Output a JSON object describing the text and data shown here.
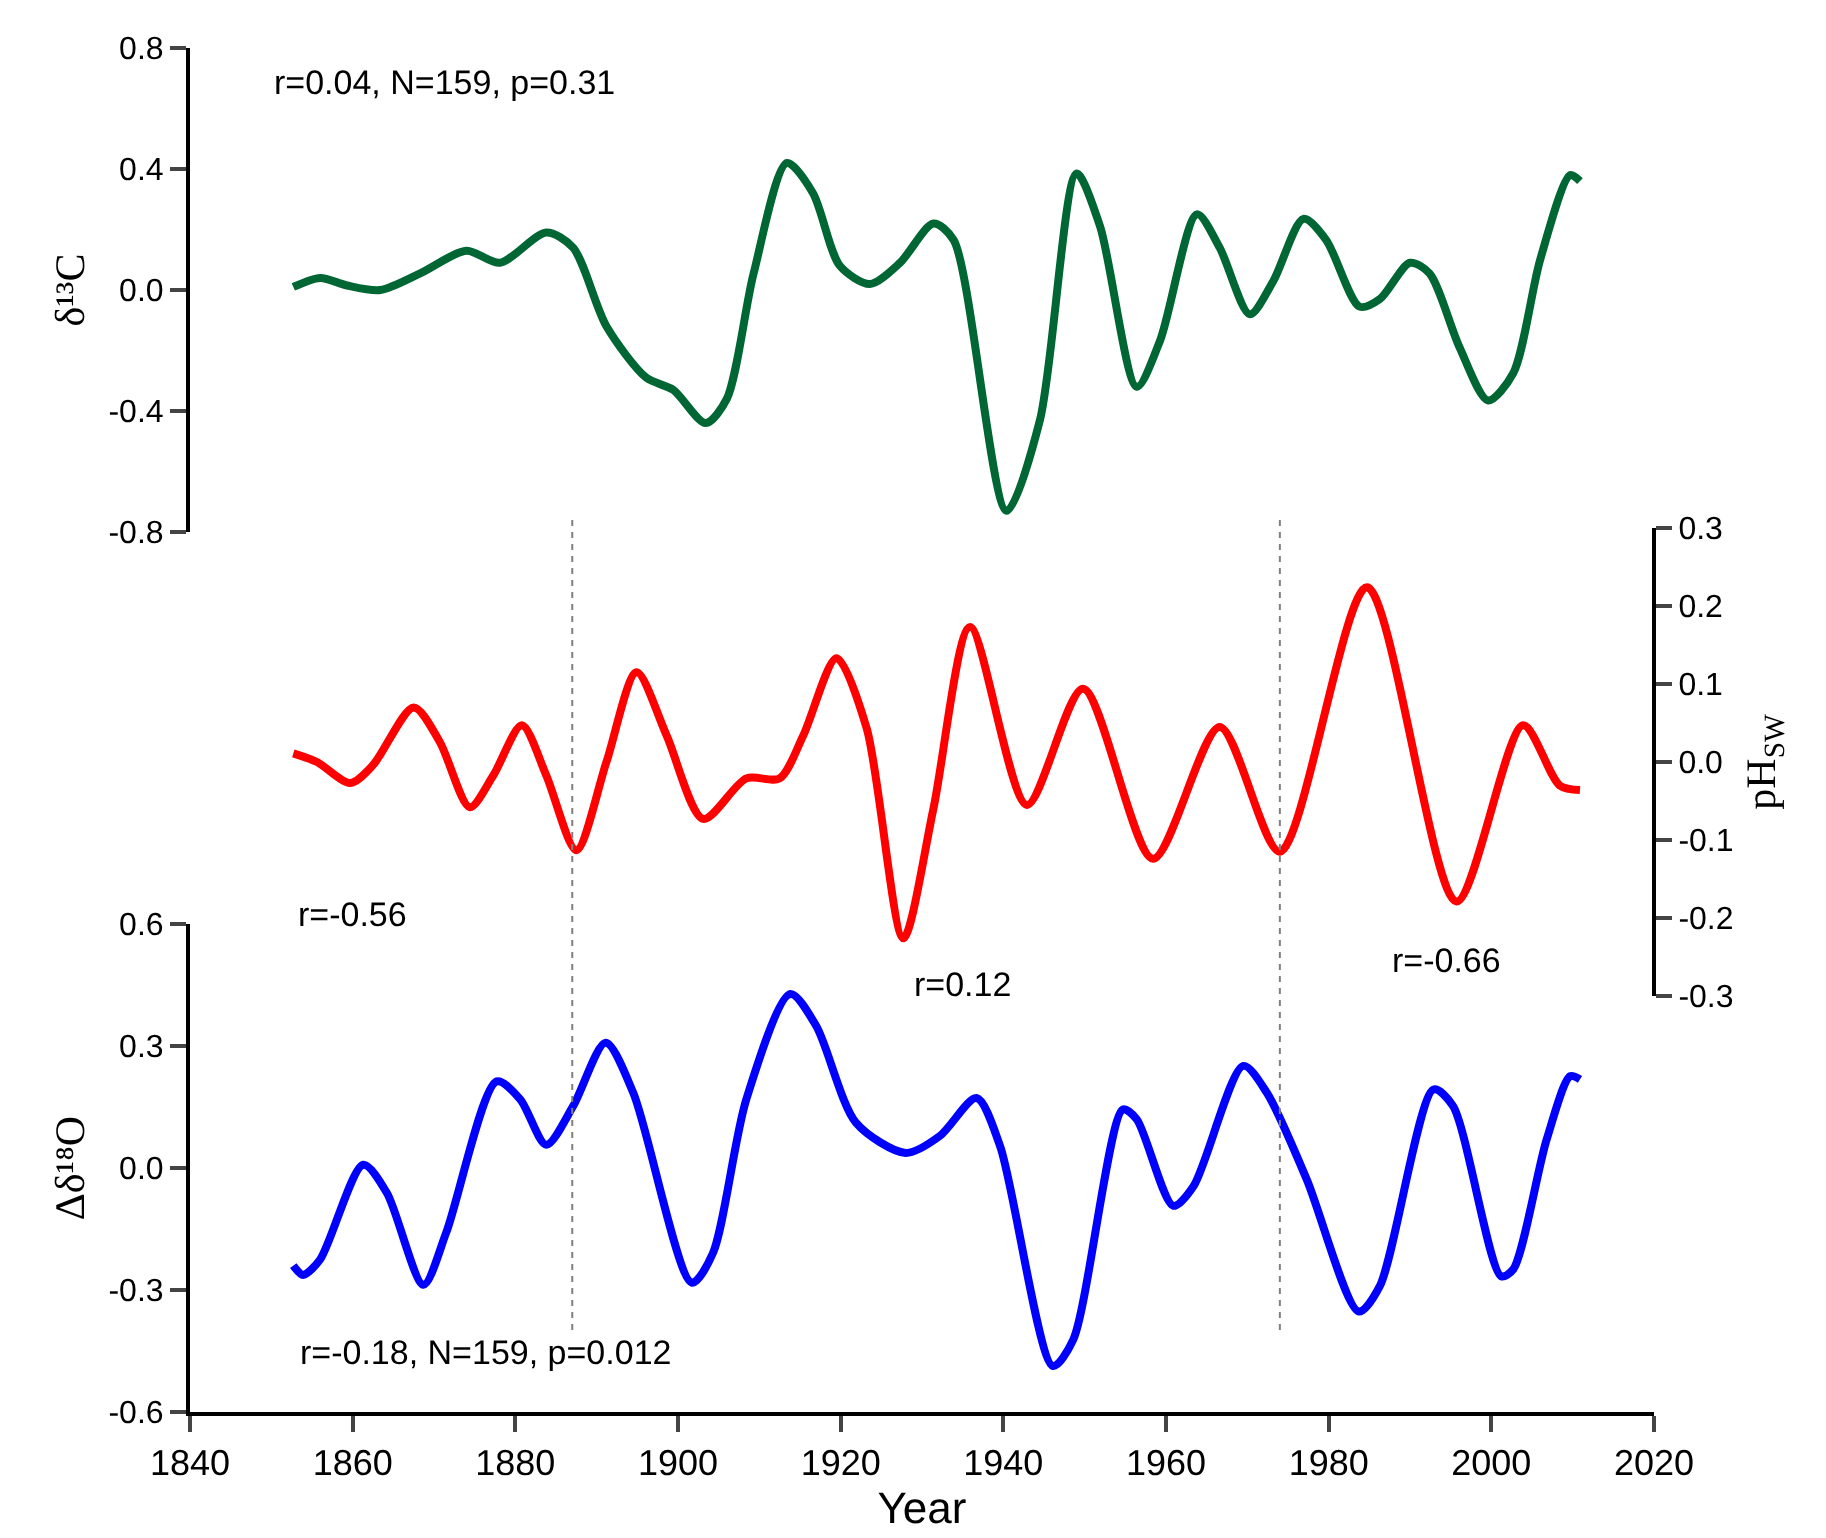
{
  "chart_data": [
    {
      "type": "line",
      "ylabel": "δ¹³C",
      "xlim": [
        1840,
        2020
      ],
      "xticks": [
        1840,
        1860,
        1880,
        1900,
        1920,
        1940,
        1960,
        1980,
        2000,
        2020
      ],
      "ylim": [
        -0.8,
        0.8
      ],
      "yticks": [
        {
          "value": -0.8,
          "label": "-0.8"
        },
        {
          "value": -0.4,
          "label": "-0.4"
        },
        {
          "value": 0,
          "label": "0.0"
        },
        {
          "value": 0.4,
          "label": "0.4"
        },
        {
          "value": 0.8,
          "label": "0.8"
        }
      ],
      "tick_labels": "y",
      "line_style": "solid",
      "annotations": [
        "r=0.04, N=159, p=0.31"
      ],
      "x": [
        1852.7,
        1856,
        1859.3,
        1863.4,
        1868.3,
        1874,
        1878.1,
        1883.8,
        1887.1,
        1891.2,
        1896.1,
        1899.4,
        1903.4,
        1906,
        1909.3,
        1913.4,
        1916.6,
        1919.9,
        1923.6,
        1927.3,
        1931.4,
        1933.9,
        1940.4,
        1944.5,
        1949,
        1951.9,
        1956.4,
        1959.3,
        1963.8,
        1966.6,
        1970.3,
        1973.2,
        1976.9,
        1979.7,
        1983.8,
        1986.3,
        1990,
        1992.4,
        1996.1,
        1999.6,
        2002.7,
        2006,
        2009.7,
        2010.9
      ],
      "series": [
        {
          "color": "#006633",
          "values": [
            0.01,
            0.04,
            0.015,
            0.0,
            0.055,
            0.13,
            0.09,
            0.19,
            0.14,
            -0.12,
            -0.29,
            -0.33,
            -0.44,
            -0.36,
            0.055,
            0.42,
            0.32,
            0.08,
            0.02,
            0.09,
            0.22,
            0.165,
            -0.73,
            -0.43,
            0.385,
            0.21,
            -0.32,
            -0.165,
            0.25,
            0.14,
            -0.08,
            0.03,
            0.235,
            0.165,
            -0.055,
            -0.03,
            0.09,
            0.055,
            -0.19,
            -0.365,
            -0.275,
            0.1,
            0.38,
            0.36
          ]
        }
      ]
    },
    {
      "type": "line",
      "ylabel": "pH$_{SW}$",
      "xlim": [
        1840,
        2020
      ],
      "xticks": [
        1840,
        1860,
        1880,
        1900,
        1920,
        1940,
        1960,
        1980,
        2000,
        2020
      ],
      "ylim": [
        -0.3,
        0.3
      ],
      "yticks": [
        {
          "value": -0.3,
          "label": "-0.3"
        },
        {
          "value": -0.2,
          "label": "-0.2"
        },
        {
          "value": -0.1,
          "label": "-0.1"
        },
        {
          "value": 0,
          "label": "0.0"
        },
        {
          "value": 0.1,
          "label": "0.1"
        },
        {
          "value": 0.2,
          "label": "0.2"
        },
        {
          "value": 0.3,
          "label": "0.3"
        }
      ],
      "tick_labels": "y",
      "line_style": "solid",
      "annotations": [
        "r=-0.56",
        "r=0.12",
        "r=-0.66"
      ],
      "ref_lines": [
        {
          "axis": "x",
          "value": 1887,
          "color": "#808080",
          "line_style": "dotted"
        },
        {
          "axis": "x",
          "value": 1974,
          "color": "#808080",
          "line_style": "dotted"
        }
      ],
      "x": [
        1852.7,
        1855.6,
        1859.7,
        1862.5,
        1867.5,
        1870.7,
        1874.4,
        1877.3,
        1880.8,
        1883.8,
        1887.5,
        1891.2,
        1894.9,
        1898.6,
        1903.1,
        1908.4,
        1912.5,
        1915.4,
        1919.5,
        1923.2,
        1927.7,
        1931.4,
        1935.9,
        1942.9,
        1949.8,
        1958.4,
        1966.6,
        1974,
        1984.7,
        1995.7,
        2003.9,
        2008.4,
        2010.9
      ],
      "series": [
        {
          "color": "#ff0000",
          "values": [
            0.011,
            0.0,
            -0.027,
            -0.004,
            0.07,
            0.026,
            -0.058,
            -0.017,
            0.047,
            -0.017,
            -0.113,
            0.0,
            0.115,
            0.034,
            -0.073,
            -0.021,
            -0.021,
            0.034,
            0.133,
            0.043,
            -0.226,
            -0.06,
            0.173,
            -0.055,
            0.094,
            -0.124,
            0.045,
            -0.115,
            0.224,
            -0.179,
            0.047,
            -0.03,
            -0.036
          ]
        }
      ]
    },
    {
      "type": "line",
      "ylabel": "Δδ¹⁸O",
      "xlabel": "Year",
      "xlim": [
        1840,
        2020
      ],
      "xticks": [
        1840,
        1860,
        1880,
        1900,
        1920,
        1940,
        1960,
        1980,
        2000,
        2020
      ],
      "ylim": [
        -0.6,
        0.6
      ],
      "yticks": [
        {
          "value": -0.6,
          "label": "-0.6"
        },
        {
          "value": -0.3,
          "label": "-0.3"
        },
        {
          "value": 0,
          "label": "0.0"
        },
        {
          "value": 0.3,
          "label": "0.3"
        },
        {
          "value": 0.6,
          "label": "0.6"
        }
      ],
      "line_style": "solid",
      "annotations": [
        "r=-0.18, N=159, p=0.012"
      ],
      "x": [
        1852.7,
        1853.9,
        1856,
        1861.3,
        1864.2,
        1868.7,
        1871.5,
        1877.7,
        1880.6,
        1883.8,
        1887.1,
        1891.1,
        1894.5,
        1901.7,
        1904.3,
        1908.4,
        1913.8,
        1917,
        1921.9,
        1928,
        1932.2,
        1936.7,
        1939.6,
        1946.1,
        1948.6,
        1954.7,
        1956.4,
        1960.9,
        1963.4,
        1969.5,
        1972.4,
        1977.3,
        1983.7,
        1986.3,
        1992.9,
        1995.3,
        2001.2,
        2002.7,
        2006.8,
        2009.7,
        2010.9
      ],
      "series": [
        {
          "color": "#0000ff",
          "values": [
            -0.24,
            -0.263,
            -0.225,
            0.008,
            -0.061,
            -0.287,
            -0.159,
            0.213,
            0.169,
            0.057,
            0.152,
            0.308,
            0.185,
            -0.282,
            -0.209,
            0.169,
            0.428,
            0.349,
            0.111,
            0.037,
            0.079,
            0.172,
            0.054,
            -0.487,
            -0.422,
            0.144,
            0.12,
            -0.093,
            -0.044,
            0.251,
            0.185,
            -0.028,
            -0.353,
            -0.29,
            0.193,
            0.152,
            -0.266,
            -0.249,
            0.07,
            0.226,
            0.218
          ]
        }
      ]
    }
  ]
}
